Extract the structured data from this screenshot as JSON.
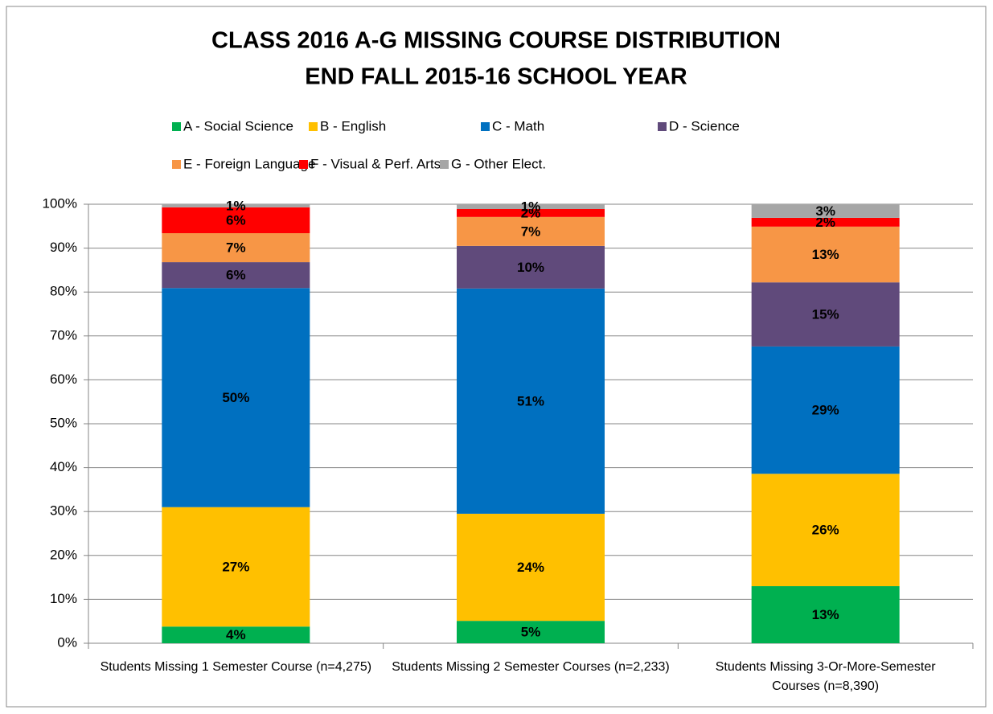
{
  "chart_data": {
    "type": "stacked_bar",
    "title": [
      "CLASS 2016 A-G MISSING COURSE DISTRIBUTION",
      "END FALL 2015-16 SCHOOL YEAR"
    ],
    "categories": [
      "Students Missing 1 Semester Course (n=4,275)",
      "Students Missing 2 Semester Courses (n=2,233)",
      "Students Missing 3-Or-More-Semester Courses (n=8,390)"
    ],
    "series": [
      {
        "name": "A - Social Science",
        "color": "#00b050",
        "values": [
          3.8,
          5.1,
          13
        ],
        "value_labels": [
          "4%",
          "5%",
          "13%"
        ]
      },
      {
        "name": "B - English",
        "color": "#ffc000",
        "values": [
          27.2,
          24.4,
          25.6
        ],
        "value_labels": [
          "27%",
          "24%",
          "26%"
        ]
      },
      {
        "name": "C - Math",
        "color": "#0070c0",
        "values": [
          49.9,
          51.3,
          29.0
        ],
        "value_labels": [
          "50%",
          "51%",
          "29%"
        ]
      },
      {
        "name": "D - Science",
        "color": "#604a7b",
        "values": [
          5.9,
          9.7,
          14.6
        ],
        "value_labels": [
          "6%",
          "10%",
          "15%"
        ]
      },
      {
        "name": "E - Foreign Language",
        "color": "#f79646",
        "values": [
          6.6,
          6.6,
          12.7
        ],
        "value_labels": [
          "7%",
          "7%",
          "13%"
        ]
      },
      {
        "name": "F - Visual & Perf. Arts",
        "color": "#ff0000",
        "values": [
          5.9,
          1.8,
          2.0
        ],
        "value_labels": [
          "6%",
          "2%",
          "2%"
        ]
      },
      {
        "name": "G - Other Elect.",
        "color": "#a6a6a6",
        "values": [
          0.7,
          1.1,
          3.1
        ],
        "value_labels": [
          "1%",
          "1%",
          "3%"
        ]
      }
    ],
    "ylim": [
      0,
      100
    ],
    "yticks": [
      {
        "value": 0,
        "label": "0%"
      },
      {
        "value": 10,
        "label": "10%"
      },
      {
        "value": 20,
        "label": "20%"
      },
      {
        "value": 30,
        "label": "30%"
      },
      {
        "value": 40,
        "label": "40%"
      },
      {
        "value": 50,
        "label": "50%"
      },
      {
        "value": 60,
        "label": "60%"
      },
      {
        "value": 70,
        "label": "70%"
      },
      {
        "value": 80,
        "label": "80%"
      },
      {
        "value": 90,
        "label": "90%"
      },
      {
        "value": 100,
        "label": "100%"
      }
    ],
    "grid": true,
    "legend": "top"
  }
}
